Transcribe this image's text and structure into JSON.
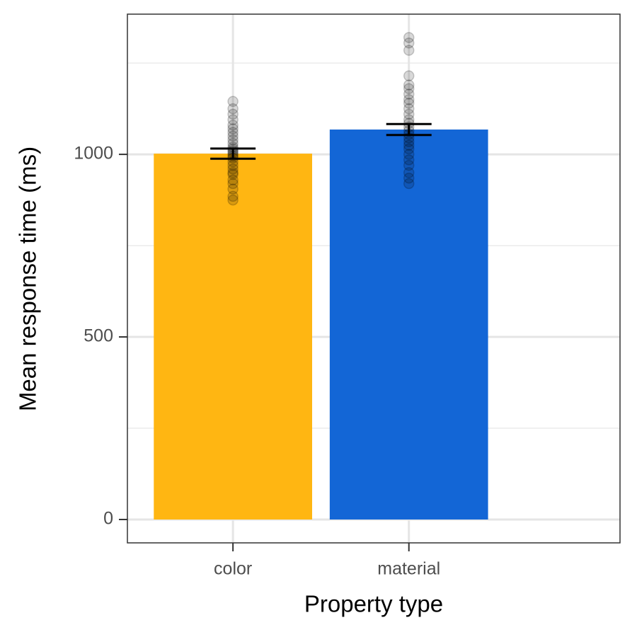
{
  "chart_data": {
    "type": "bar",
    "x_label": "Property type",
    "y_label": "Mean response time (ms)",
    "categories": [
      "color",
      "material"
    ],
    "values": [
      1002,
      1068
    ],
    "errors": [
      14,
      15
    ],
    "colors": [
      "#ffb612",
      "#1366d6"
    ],
    "points": [
      [
        875,
        885,
        905,
        920,
        930,
        945,
        950,
        960,
        970,
        980,
        990,
        995,
        1000,
        1005,
        1010,
        1015,
        1020,
        1030,
        1040,
        1050,
        1060,
        1070,
        1080,
        1095,
        1110,
        1125,
        1145
      ],
      [
        920,
        935,
        950,
        970,
        985,
        1000,
        1015,
        1025,
        1035,
        1045,
        1055,
        1065,
        1075,
        1085,
        1095,
        1110,
        1125,
        1140,
        1150,
        1165,
        1180,
        1190,
        1215,
        1285,
        1305,
        1320
      ]
    ],
    "ylim": [
      -64,
      1384
    ],
    "yticks": [
      0,
      500,
      1000
    ],
    "minor_yticks": [
      250,
      750,
      1250
    ],
    "grid": true
  }
}
